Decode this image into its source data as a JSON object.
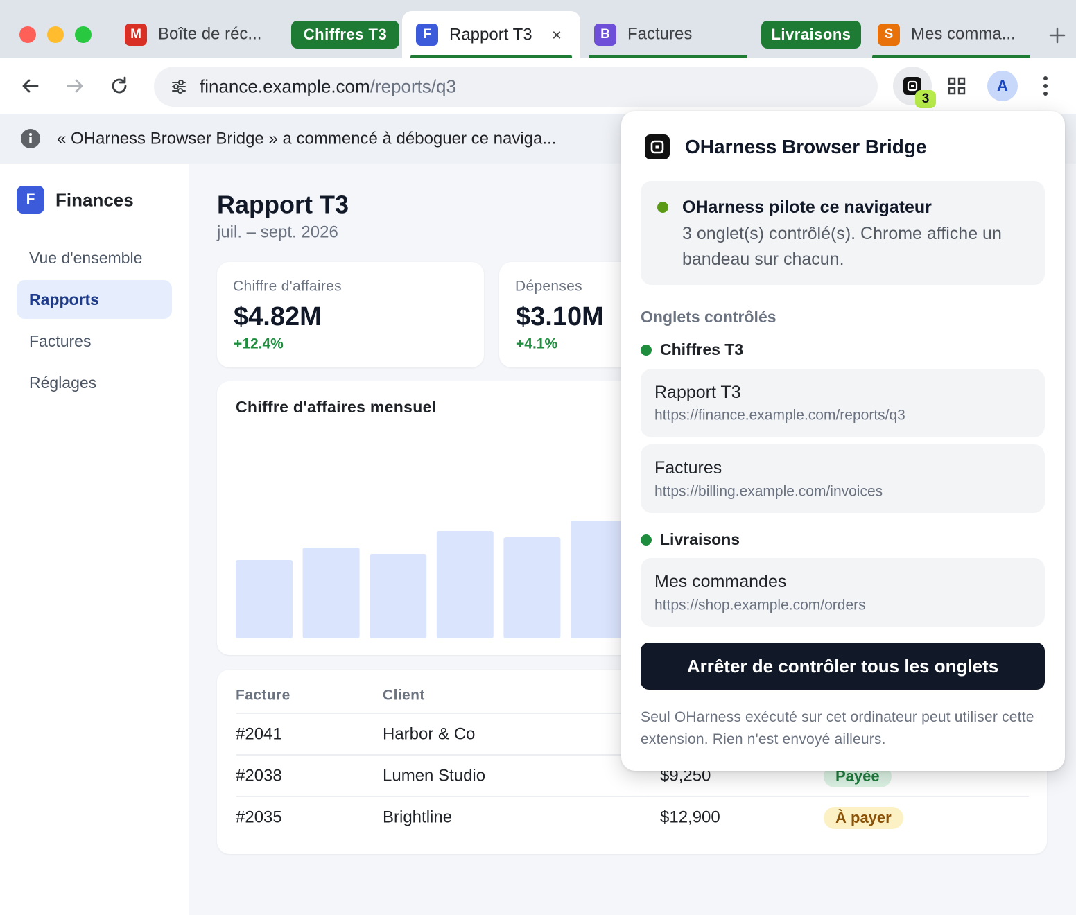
{
  "browser": {
    "tabs": [
      {
        "icon": "M",
        "title": "Boîte de réc..."
      },
      {
        "icon": "F",
        "title": "Rapport T3",
        "close": "×"
      },
      {
        "icon": "B",
        "title": "Factures"
      },
      {
        "icon": "S",
        "title": "Mes comma..."
      }
    ],
    "tab_groups": [
      "Chiffres T3",
      "Livraisons"
    ],
    "address": {
      "host": "finance.example.com",
      "path": "/reports/q3"
    },
    "extension_badge": "3",
    "avatar": "A",
    "infobar": "« OHarness Browser Bridge » a commencé à déboguer ce naviga..."
  },
  "sidebar": {
    "logo": "F",
    "title": "Finances",
    "nav": [
      "Vue d'ensemble",
      "Rapports",
      "Factures",
      "Réglages"
    ],
    "active": 1
  },
  "report": {
    "title": "Rapport T3",
    "period": "juil. – sept. 2026",
    "kpis": [
      {
        "label": "Chiffre d'affaires",
        "value": "$4.82M",
        "change": "+12.4%"
      },
      {
        "label": "Dépenses",
        "value": "$3.10M",
        "change": "+4.1%"
      }
    ],
    "chart": {
      "title": "Chiffre d'affaires mensuel",
      "values": [
        113,
        131,
        122,
        155,
        146,
        170
      ]
    },
    "table": {
      "columns": [
        "Facture",
        "Client"
      ],
      "rows": [
        {
          "id": "#2041",
          "client": "Harbor & Co"
        },
        {
          "id": "#2038",
          "client": "Lumen Studio",
          "amount": "$9,250",
          "status": "Payée"
        },
        {
          "id": "#2035",
          "client": "Brightline",
          "amount": "$12,900",
          "status": "À payer"
        }
      ]
    }
  },
  "popup": {
    "title": "OHarness Browser Bridge",
    "status": {
      "title": "OHarness pilote ce navigateur",
      "description": "3 onglet(s) contrôlé(s). Chrome affiche un bandeau sur chacun."
    },
    "section_title": "Onglets contrôlés",
    "groups": [
      {
        "name": "Chiffres T3",
        "tabs": [
          {
            "title": "Rapport T3",
            "url": "https://finance.example.com/reports/q3"
          },
          {
            "title": "Factures",
            "url": "https://billing.example.com/invoices"
          }
        ]
      },
      {
        "name": "Livraisons",
        "tabs": [
          {
            "title": "Mes commandes",
            "url": "https://shop.example.com/orders"
          }
        ]
      }
    ],
    "button": "Arrêter de contrôler tous les onglets",
    "footer": "Seul OHarness exécuté sur cet ordinateur peut utiliser cette extension. Rien n'est envoyé ailleurs."
  }
}
